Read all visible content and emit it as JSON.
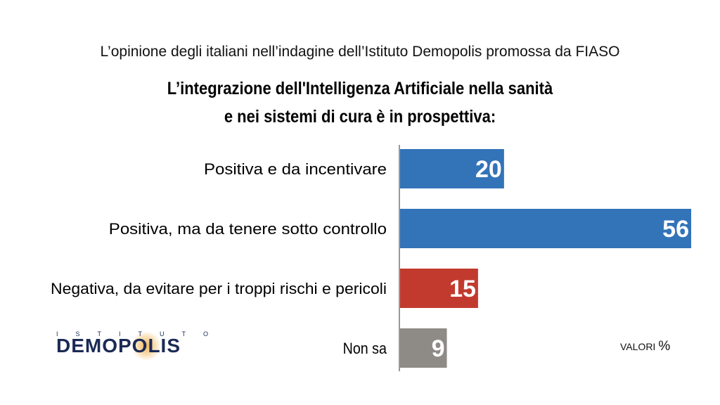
{
  "header": {
    "supertitle": "L’opinione degli italiani nell’indagine dell’Istituto Demopolis promossa da FIASO",
    "title_line1": "L’integrazione dell'Intelligenza Artificiale nella sanità",
    "title_line2": "e nei sistemi di cura è in prospettiva:"
  },
  "logo": {
    "top_letters": [
      "I",
      "S",
      "T",
      "I",
      "T",
      "U",
      "T",
      "O"
    ],
    "main": "DEMOPOLIS"
  },
  "unit": {
    "label": "VALORI",
    "symbol": "%"
  },
  "chart_data": {
    "type": "bar",
    "orientation": "horizontal",
    "categories": [
      "Positiva e da incentivare",
      "Positiva, ma da tenere sotto controllo",
      "Negativa, da evitare per i troppi rischi e pericoli",
      "Non sa"
    ],
    "values": [
      20,
      56,
      15,
      9
    ],
    "colors": [
      "#3373b8",
      "#3373b8",
      "#c23a2e",
      "#8e8a85"
    ],
    "xlim": [
      0,
      56
    ],
    "data_labels": true,
    "grid": false
  }
}
